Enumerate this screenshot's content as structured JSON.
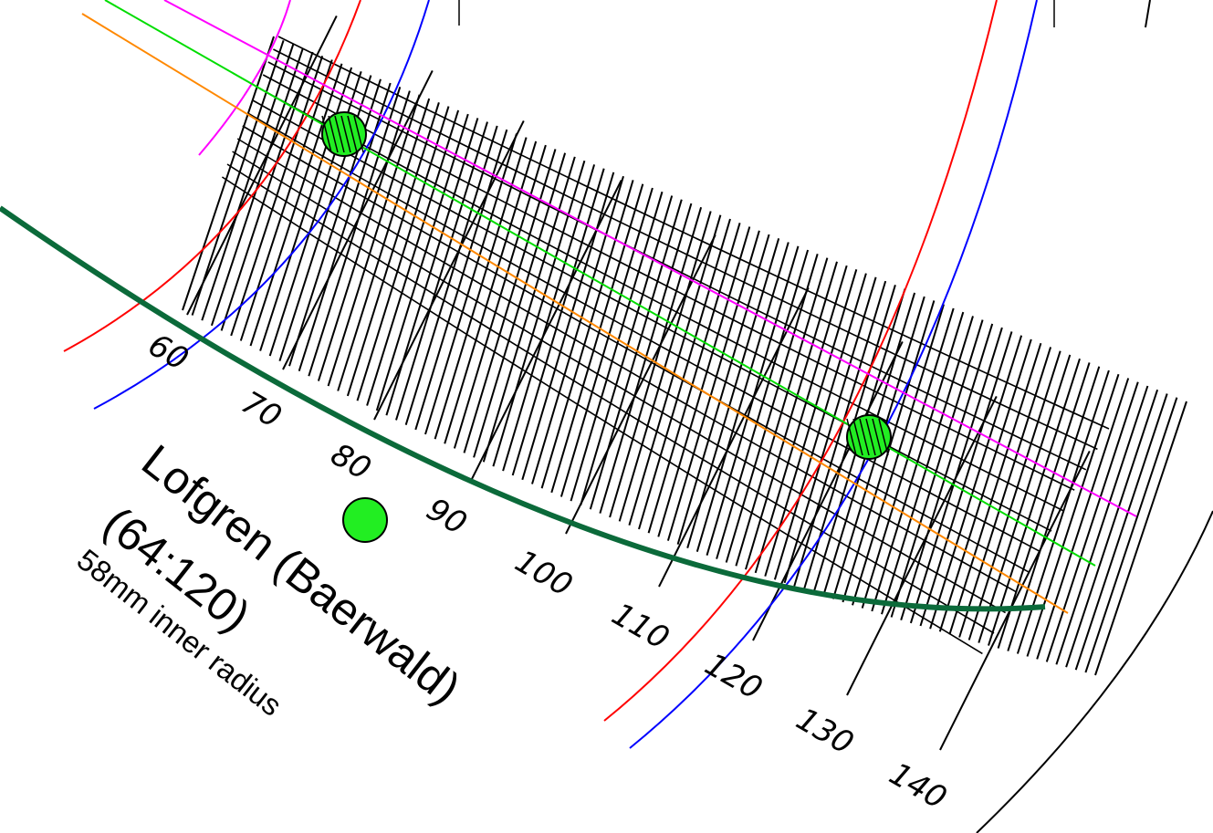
{
  "title": {
    "line1": "Lofgren (Baerwald)",
    "line2": "(64:120)",
    "line3": "58mm inner radius"
  },
  "radius_labels": [
    "60",
    "70",
    "80",
    "90",
    "100",
    "110",
    "120",
    "130",
    "140"
  ],
  "colors": {
    "grid": "#000000",
    "null_point": "#22ee22",
    "arc_red": "#ff0000",
    "arc_blue": "#0000ff",
    "arc_magenta": "#ff00ff",
    "line_green": "#00dd00",
    "line_orange": "#ff8800",
    "groove_arc": "#0b6a3a"
  },
  "icons": {
    "null_point_marker": "green-circle",
    "center_marker": "green-dot"
  }
}
